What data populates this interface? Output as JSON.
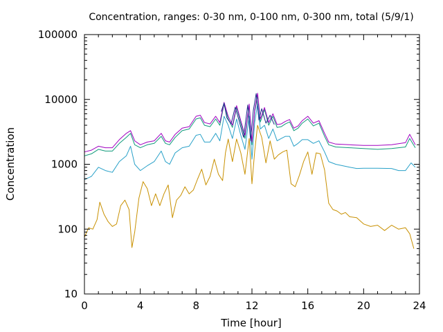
{
  "chart_data": {
    "type": "line",
    "title": "Concentration, ranges: 0-30 nm, 0-100 nm, 0-300 nm, total (5/9/1)",
    "xlabel": "Time [hour]",
    "ylabel": "Concentration",
    "xlim": [
      0,
      24
    ],
    "ylim": [
      10,
      100000
    ],
    "yscale": "log",
    "grid": false,
    "legend": "none",
    "xticks": [
      0,
      4,
      8,
      12,
      16,
      20,
      24
    ],
    "xtick_labels": [
      "0",
      "4",
      "8",
      "12",
      "16",
      "20",
      "24"
    ],
    "yticks": [
      10,
      100,
      1000,
      10000,
      100000
    ],
    "ytick_labels": [
      "10",
      "100",
      "1000",
      "10000",
      "100000"
    ],
    "series": [
      {
        "color": "#c89000",
        "x": [
          0,
          0.3,
          0.6,
          0.9,
          1.1,
          1.4,
          1.7,
          2.0,
          2.3,
          2.6,
          2.9,
          3.2,
          3.4,
          3.6,
          3.9,
          4.2,
          4.5,
          4.8,
          5.1,
          5.4,
          5.7,
          6.0,
          6.3,
          6.6,
          6.9,
          7.2,
          7.5,
          7.8,
          8.1,
          8.4,
          8.7,
          9.0,
          9.3,
          9.6,
          9.9,
          10.1,
          10.3,
          10.6,
          10.9,
          11.2,
          11.5,
          11.8,
          12.0,
          12.2,
          12.4,
          12.7,
          13.0,
          13.3,
          13.6,
          13.9,
          14.2,
          14.5,
          14.8,
          15.1,
          15.4,
          15.7,
          16.0,
          16.3,
          16.6,
          16.9,
          17.2,
          17.5,
          17.8,
          18.1,
          18.4,
          18.7,
          19.0,
          19.5,
          20.0,
          20.5,
          21.0,
          21.5,
          22.0,
          22.5,
          23.0,
          23.3,
          23.6
        ],
        "y": [
          75,
          105,
          100,
          140,
          260,
          170,
          130,
          110,
          120,
          230,
          280,
          200,
          52,
          90,
          300,
          540,
          420,
          230,
          350,
          230,
          350,
          480,
          150,
          280,
          330,
          450,
          350,
          400,
          590,
          840,
          480,
          650,
          1200,
          700,
          560,
          1500,
          2450,
          1100,
          2450,
          1500,
          700,
          2500,
          500,
          1600,
          4000,
          2600,
          1050,
          2300,
          1200,
          1400,
          1550,
          1650,
          500,
          450,
          680,
          1100,
          1550,
          700,
          1500,
          1450,
          820,
          250,
          200,
          190,
          170,
          180,
          155,
          150,
          120,
          110,
          115,
          95,
          115,
          100,
          105,
          85,
          50
        ]
      },
      {
        "color": "#27a0c8",
        "x": [
          0,
          0.5,
          1.0,
          1.5,
          2.0,
          2.5,
          3.0,
          3.3,
          3.6,
          4.0,
          4.5,
          5.0,
          5.5,
          5.8,
          6.1,
          6.5,
          7.0,
          7.5,
          8.0,
          8.3,
          8.6,
          9.0,
          9.4,
          9.7,
          10.0,
          10.3,
          10.6,
          10.9,
          11.2,
          11.5,
          11.8,
          12.0,
          12.2,
          12.4,
          12.6,
          12.9,
          13.2,
          13.5,
          13.8,
          14.1,
          14.4,
          14.7,
          15.0,
          15.3,
          15.6,
          16.0,
          16.4,
          16.8,
          17.2,
          17.5,
          18.0,
          18.5,
          19.0,
          19.5,
          20.0,
          21.0,
          22.0,
          22.5,
          23.0,
          23.4,
          23.7
        ],
        "y": [
          580,
          650,
          900,
          800,
          750,
          1100,
          1350,
          1900,
          1000,
          800,
          950,
          1100,
          1600,
          1100,
          1000,
          1500,
          1800,
          1900,
          2800,
          2900,
          2200,
          2200,
          3000,
          2300,
          5500,
          4000,
          2500,
          5000,
          2800,
          1700,
          5500,
          1200,
          4500,
          8500,
          3500,
          4000,
          2500,
          3500,
          2300,
          2500,
          2700,
          2700,
          1900,
          2100,
          2400,
          2400,
          2100,
          2300,
          1550,
          1100,
          1000,
          950,
          900,
          860,
          870,
          870,
          860,
          800,
          800,
          1050,
          900
        ]
      },
      {
        "color": "#0f9a7a",
        "x": [
          0,
          0.5,
          1.0,
          1.5,
          2.0,
          2.5,
          3.0,
          3.3,
          3.6,
          4.0,
          4.5,
          5.0,
          5.5,
          5.8,
          6.1,
          6.5,
          7.0,
          7.5,
          8.0,
          8.3,
          8.6,
          9.0,
          9.4,
          9.7,
          10.0,
          10.3,
          10.6,
          10.9,
          11.2,
          11.5,
          11.8,
          12.0,
          12.2,
          12.4,
          12.6,
          12.9,
          13.2,
          13.5,
          13.8,
          14.1,
          14.4,
          14.7,
          15.0,
          15.3,
          15.6,
          16.0,
          16.4,
          16.8,
          17.2,
          17.5,
          18.0,
          19.0,
          20.0,
          21.0,
          22.0,
          23.0,
          23.3,
          23.7
        ],
        "y": [
          1350,
          1450,
          1700,
          1600,
          1600,
          2100,
          2600,
          3000,
          2000,
          1800,
          2000,
          2100,
          2700,
          2100,
          2000,
          2600,
          3300,
          3500,
          5000,
          5200,
          4000,
          3800,
          5000,
          4000,
          8500,
          5000,
          3700,
          7500,
          4300,
          2500,
          8000,
          2000,
          6500,
          11500,
          4500,
          7000,
          4000,
          5500,
          3700,
          3800,
          4200,
          4500,
          3300,
          3600,
          4300,
          5000,
          3900,
          4300,
          2700,
          2000,
          1850,
          1800,
          1750,
          1700,
          1750,
          1850,
          2500,
          1800
        ]
      },
      {
        "color": "#a000c0",
        "x": [
          0,
          0.5,
          1.0,
          1.5,
          2.0,
          2.5,
          3.0,
          3.3,
          3.6,
          4.0,
          4.5,
          5.0,
          5.5,
          5.8,
          6.1,
          6.5,
          7.0,
          7.5,
          8.0,
          8.3,
          8.6,
          9.0,
          9.4,
          9.7,
          10.0,
          10.3,
          10.6,
          10.9,
          11.2,
          11.5,
          11.8,
          12.0,
          12.2,
          12.4,
          12.6,
          12.9,
          13.2,
          13.5,
          13.8,
          14.1,
          14.4,
          14.7,
          15.0,
          15.3,
          15.6,
          16.0,
          16.4,
          16.8,
          17.2,
          17.5,
          18.0,
          19.0,
          20.0,
          21.0,
          22.0,
          23.0,
          23.3,
          23.7
        ],
        "y": [
          1550,
          1650,
          1900,
          1800,
          1800,
          2400,
          3000,
          3300,
          2300,
          2000,
          2200,
          2300,
          3000,
          2300,
          2200,
          2900,
          3600,
          3800,
          5500,
          5700,
          4400,
          4200,
          5500,
          4400,
          9000,
          5500,
          4000,
          8000,
          4700,
          2800,
          8500,
          2200,
          7000,
          12500,
          5000,
          7500,
          4400,
          6000,
          4100,
          4200,
          4600,
          4900,
          3600,
          3900,
          4700,
          5500,
          4300,
          4700,
          3000,
          2200,
          2050,
          2000,
          1950,
          1950,
          2000,
          2150,
          2900,
          2000
        ]
      },
      {
        "color": "#1a2a88",
        "x": [
          9.8,
          10.0,
          10.2,
          10.5,
          10.8,
          11.1,
          11.4,
          11.7,
          11.9,
          12.1,
          12.3,
          12.5,
          12.7,
          13.0,
          13.3,
          13.6
        ],
        "y": [
          6500,
          8800,
          5200,
          4200,
          7600,
          4500,
          2600,
          8200,
          2300,
          6800,
          12300,
          4800,
          7200,
          4300,
          5700,
          4100
        ]
      }
    ]
  }
}
